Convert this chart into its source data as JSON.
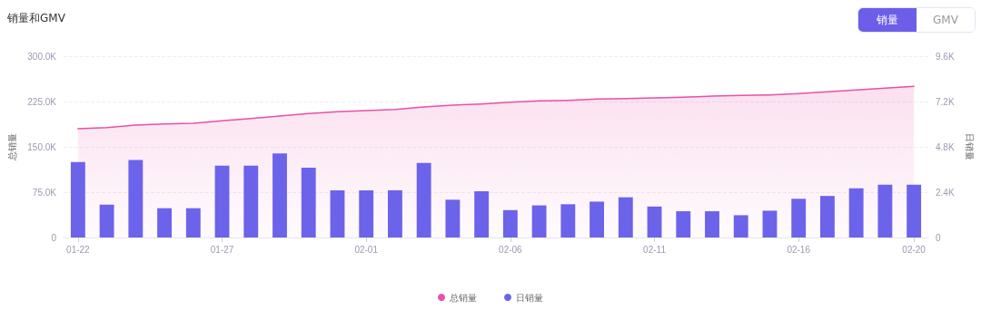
{
  "chart_data": {
    "type": "bar",
    "title": "销量和GMV",
    "annotations": [
      "销量",
      "GMV"
    ],
    "categories": [
      "01-22",
      null,
      null,
      null,
      null,
      "01-27",
      null,
      null,
      null,
      null,
      "02-01",
      null,
      null,
      null,
      null,
      "02-06",
      null,
      null,
      null,
      null,
      "02-11",
      null,
      null,
      null,
      null,
      "02-16",
      null,
      null,
      null,
      "02-20"
    ],
    "ylabel": "总销量",
    "y2label": "日销量",
    "ylim": [
      0,
      300000
    ],
    "yticks": [
      {
        "value": 0,
        "label": "0"
      },
      {
        "value": 75000,
        "label": "75.0K"
      },
      {
        "value": 150000,
        "label": "150.0K"
      },
      {
        "value": 225000,
        "label": "225.0K"
      },
      {
        "value": 300000,
        "label": "300.0K"
      }
    ],
    "y2lim": [
      0,
      9600
    ],
    "y2ticks": [
      {
        "value": 0,
        "label": "0"
      },
      {
        "value": 2400,
        "label": "2.4K"
      },
      {
        "value": 4800,
        "label": "4.8K"
      },
      {
        "value": 7200,
        "label": "7.2K"
      },
      {
        "value": 9600,
        "label": "9.6K"
      }
    ],
    "series": [
      {
        "name": "总销量",
        "type": "area",
        "color": "#ea4fa6",
        "values": [
          180000,
          182000,
          186000,
          188000,
          189000,
          193000,
          197000,
          201000,
          205000,
          208000,
          210000,
          212000,
          216000,
          219000,
          221000,
          224000,
          226000,
          227000,
          229000,
          230000,
          231000,
          232000,
          234000,
          235000,
          236000,
          238000,
          241000,
          244000,
          247000,
          250000
        ]
      },
      {
        "name": "日销量",
        "axis": "y2",
        "color": "#6c63eb",
        "values": [
          4000,
          1740,
          4100,
          1550,
          1550,
          3800,
          3800,
          4450,
          3700,
          2500,
          2500,
          2500,
          3950,
          2000,
          2450,
          1450,
          1700,
          1760,
          1900,
          2130,
          1640,
          1390,
          1390,
          1180,
          1420,
          2050,
          2200,
          2600,
          2800,
          2800
        ]
      }
    ],
    "grid": "y",
    "legend": "bottom",
    "marker": "none"
  }
}
